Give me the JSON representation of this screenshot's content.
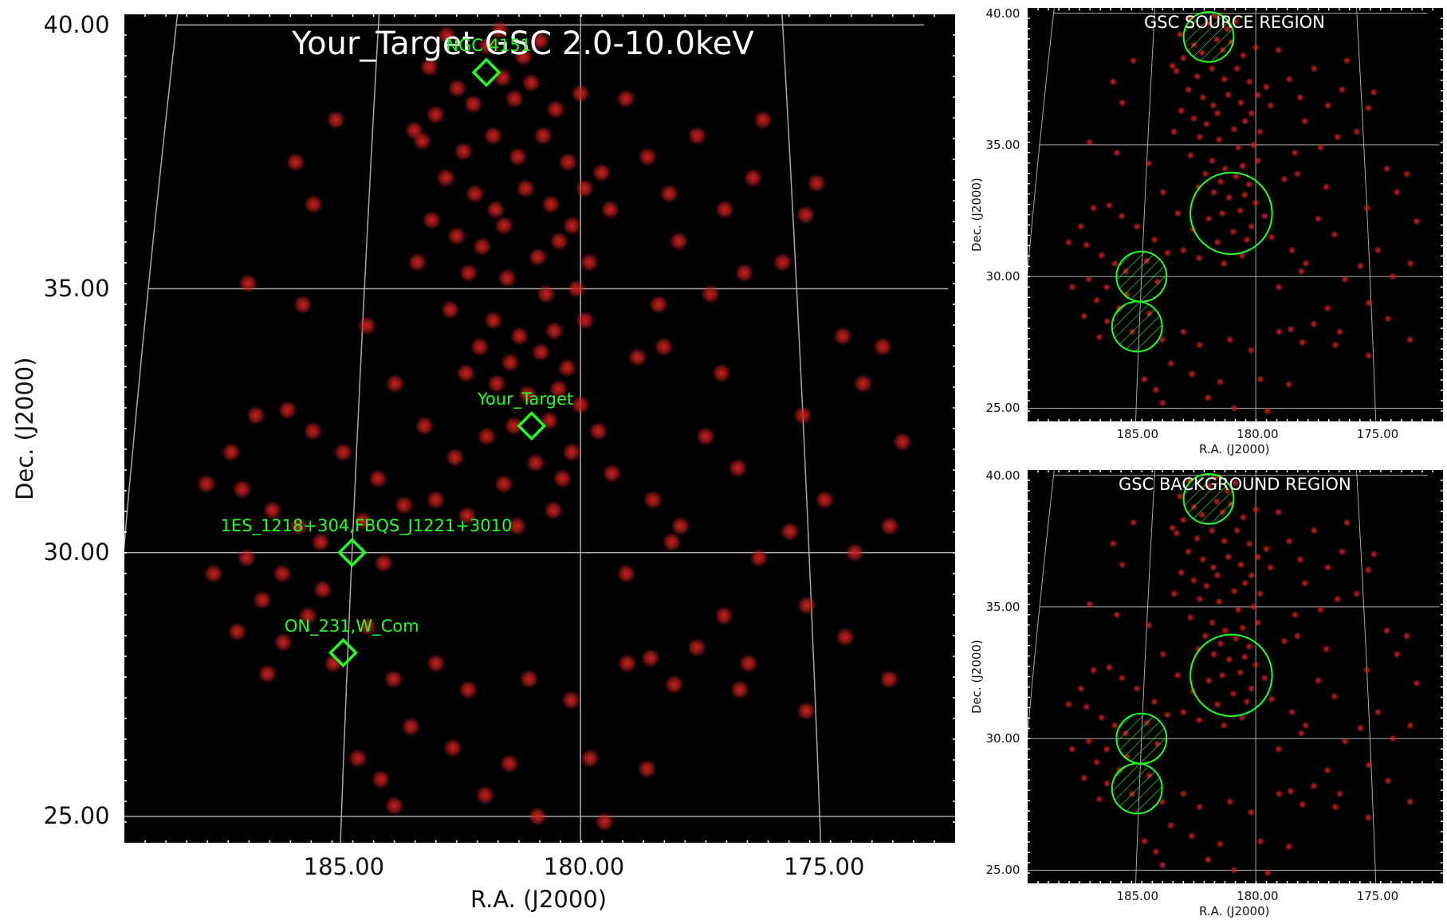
{
  "main": {
    "title": "Your_Target GSC 2.0-10.0keV",
    "xlabel": "R.A. (J2000)",
    "ylabel": "Dec. (J2000)",
    "xticks": [
      "185.00",
      "180.00",
      "175.00"
    ],
    "yticks": [
      "40.00",
      "35.00",
      "30.00",
      "25.00"
    ],
    "sources": [
      {
        "label": "NGC 4151",
        "ra": 182.3,
        "dec": 39.1
      },
      {
        "label": "Your_Target",
        "ra": 181.1,
        "dec": 32.4
      },
      {
        "label": "1ES_1218+304,FBQS_J1221+3010",
        "ra": 185.0,
        "dec": 30.0
      },
      {
        "label": "ON_231,W_Com",
        "ra": 185.1,
        "dec": 28.1
      }
    ]
  },
  "source_panel": {
    "title": "GSC SOURCE REGION",
    "xlabel": "R.A. (J2000)",
    "ylabel": "Dec. (J2000)",
    "xticks": [
      "185.00",
      "180.00",
      "175.00"
    ],
    "yticks": [
      "40.00",
      "35.00",
      "30.00",
      "25.00"
    ]
  },
  "background_panel": {
    "title": "GSC BACKGROUND REGION",
    "xlabel": "R.A. (J2000)",
    "ylabel": "Dec. (J2000)",
    "xticks": [
      "185.00",
      "180.00",
      "175.00"
    ],
    "yticks": [
      "40.00",
      "35.00",
      "30.00",
      "25.00"
    ]
  },
  "chart_data": {
    "type": "heatmap",
    "x_range": [
      189.5,
      172.2
    ],
    "y_range": [
      24.5,
      40.2
    ],
    "grid": true,
    "colors": {
      "background": "#000000",
      "events": "#cc2020",
      "marker": "#22ff22",
      "grid": "#aaaaaa"
    },
    "regions": [
      {
        "shape": "circle",
        "ra": 181.1,
        "dec": 32.4,
        "radius_deg": 1.55,
        "hatched": false
      },
      {
        "shape": "circle",
        "ra": 182.3,
        "dec": 39.1,
        "radius_deg": 0.95,
        "hatched": true
      },
      {
        "shape": "circle",
        "ra": 185.0,
        "dec": 30.0,
        "radius_deg": 0.95,
        "hatched": true
      },
      {
        "shape": "circle",
        "ra": 185.1,
        "dec": 28.1,
        "radius_deg": 0.95,
        "hatched": true
      }
    ],
    "events": [
      [
        182.3,
        39.6
      ],
      [
        182.0,
        39.9
      ],
      [
        183.3,
        39.8
      ],
      [
        181.0,
        39.7
      ],
      [
        183.7,
        39.2
      ],
      [
        181.4,
        39.4
      ],
      [
        181.9,
        39.0
      ],
      [
        183.0,
        38.8
      ],
      [
        182.6,
        38.5
      ],
      [
        183.5,
        38.3
      ],
      [
        181.6,
        38.6
      ],
      [
        181.2,
        38.9
      ],
      [
        180.6,
        38.4
      ],
      [
        180.0,
        38.7
      ],
      [
        184.0,
        38.0
      ],
      [
        183.8,
        37.8
      ],
      [
        182.8,
        37.6
      ],
      [
        182.1,
        37.9
      ],
      [
        181.5,
        37.5
      ],
      [
        180.9,
        37.9
      ],
      [
        180.3,
        37.4
      ],
      [
        179.9,
        36.9
      ],
      [
        179.5,
        37.2
      ],
      [
        183.2,
        37.1
      ],
      [
        182.5,
        36.8
      ],
      [
        182.0,
        36.5
      ],
      [
        181.3,
        36.9
      ],
      [
        180.7,
        36.6
      ],
      [
        180.2,
        36.2
      ],
      [
        181.8,
        36.2
      ],
      [
        183.5,
        36.3
      ],
      [
        182.9,
        36.0
      ],
      [
        182.3,
        35.8
      ],
      [
        181.0,
        35.6
      ],
      [
        180.5,
        35.9
      ],
      [
        179.8,
        35.5
      ],
      [
        183.8,
        35.5
      ],
      [
        182.6,
        35.3
      ],
      [
        181.7,
        35.2
      ],
      [
        180.8,
        34.9
      ],
      [
        180.1,
        35.0
      ],
      [
        183.0,
        34.6
      ],
      [
        182.0,
        34.4
      ],
      [
        181.4,
        34.1
      ],
      [
        180.6,
        34.2
      ],
      [
        179.9,
        34.4
      ],
      [
        182.3,
        33.9
      ],
      [
        181.6,
        33.6
      ],
      [
        180.9,
        33.8
      ],
      [
        180.3,
        33.5
      ],
      [
        181.9,
        33.2
      ],
      [
        181.2,
        33.0
      ],
      [
        180.5,
        33.1
      ],
      [
        182.6,
        33.4
      ],
      [
        180.0,
        32.8
      ],
      [
        181.5,
        32.4
      ],
      [
        180.7,
        32.5
      ],
      [
        182.1,
        32.2
      ],
      [
        179.6,
        32.3
      ],
      [
        180.2,
        31.9
      ],
      [
        181.0,
        31.7
      ],
      [
        183.5,
        32.4
      ],
      [
        182.8,
        31.8
      ],
      [
        180.4,
        31.4
      ],
      [
        181.7,
        31.3
      ],
      [
        179.3,
        31.5
      ],
      [
        183.2,
        31.0
      ],
      [
        182.5,
        30.7
      ],
      [
        181.4,
        30.5
      ],
      [
        180.6,
        30.8
      ],
      [
        183.9,
        30.9
      ],
      [
        184.5,
        31.4
      ],
      [
        185.3,
        31.9
      ],
      [
        186.0,
        32.3
      ],
      [
        186.6,
        32.7
      ],
      [
        187.3,
        32.6
      ],
      [
        187.8,
        31.9
      ],
      [
        188.3,
        31.3
      ],
      [
        187.5,
        31.2
      ],
      [
        186.8,
        30.8
      ],
      [
        186.2,
        30.5
      ],
      [
        185.7,
        30.2
      ],
      [
        184.8,
        30.6
      ],
      [
        184.3,
        29.8
      ],
      [
        185.6,
        29.3
      ],
      [
        186.5,
        29.6
      ],
      [
        187.3,
        29.9
      ],
      [
        188.0,
        29.6
      ],
      [
        186.9,
        29.1
      ],
      [
        185.9,
        28.8
      ],
      [
        184.6,
        28.6
      ],
      [
        186.4,
        28.3
      ],
      [
        187.4,
        28.5
      ],
      [
        185.3,
        27.9
      ],
      [
        186.7,
        27.7
      ],
      [
        184.0,
        27.6
      ],
      [
        183.1,
        27.9
      ],
      [
        182.4,
        27.4
      ],
      [
        181.1,
        27.6
      ],
      [
        180.2,
        27.2
      ],
      [
        179.0,
        27.9
      ],
      [
        178.0,
        27.5
      ],
      [
        176.6,
        27.4
      ],
      [
        175.2,
        27.0
      ],
      [
        183.6,
        26.7
      ],
      [
        182.7,
        26.3
      ],
      [
        181.5,
        26.0
      ],
      [
        179.8,
        26.1
      ],
      [
        178.6,
        25.9
      ],
      [
        184.7,
        26.1
      ],
      [
        183.9,
        25.2
      ],
      [
        182.0,
        25.4
      ],
      [
        180.9,
        25.0
      ],
      [
        179.5,
        24.9
      ],
      [
        184.2,
        25.7
      ],
      [
        186.3,
        36.6
      ],
      [
        186.8,
        37.4
      ],
      [
        185.9,
        38.2
      ],
      [
        187.7,
        35.1
      ],
      [
        186.4,
        34.7
      ],
      [
        184.9,
        34.3
      ],
      [
        184.2,
        33.2
      ],
      [
        178.7,
        33.7
      ],
      [
        178.1,
        33.9
      ],
      [
        177.2,
        32.2
      ],
      [
        176.5,
        31.6
      ],
      [
        178.4,
        31.0
      ],
      [
        177.8,
        30.5
      ],
      [
        176.1,
        29.9
      ],
      [
        175.4,
        30.4
      ],
      [
        174.6,
        31.0
      ],
      [
        174.0,
        30.0
      ],
      [
        173.2,
        30.5
      ],
      [
        174.3,
        28.4
      ],
      [
        175.1,
        29.0
      ],
      [
        176.9,
        28.8
      ],
      [
        177.5,
        28.2
      ],
      [
        176.4,
        27.9
      ],
      [
        173.4,
        27.6
      ],
      [
        178.0,
        30.2
      ],
      [
        177.0,
        34.9
      ],
      [
        176.2,
        35.3
      ],
      [
        175.3,
        35.5
      ],
      [
        174.7,
        36.4
      ],
      [
        177.9,
        36.8
      ],
      [
        178.4,
        37.5
      ],
      [
        177.2,
        37.9
      ],
      [
        176.6,
        36.5
      ],
      [
        175.9,
        37.1
      ],
      [
        174.4,
        37.0
      ],
      [
        175.6,
        38.2
      ],
      [
        178.9,
        38.6
      ],
      [
        179.3,
        36.5
      ],
      [
        177.7,
        35.9
      ],
      [
        178.2,
        34.7
      ],
      [
        174.0,
        34.1
      ],
      [
        173.1,
        33.9
      ],
      [
        173.6,
        33.2
      ],
      [
        172.8,
        32.1
      ],
      [
        175.0,
        32.6
      ],
      [
        176.8,
        33.4
      ],
      [
        179.0,
        29.6
      ],
      [
        178.5,
        28.0
      ]
    ]
  }
}
